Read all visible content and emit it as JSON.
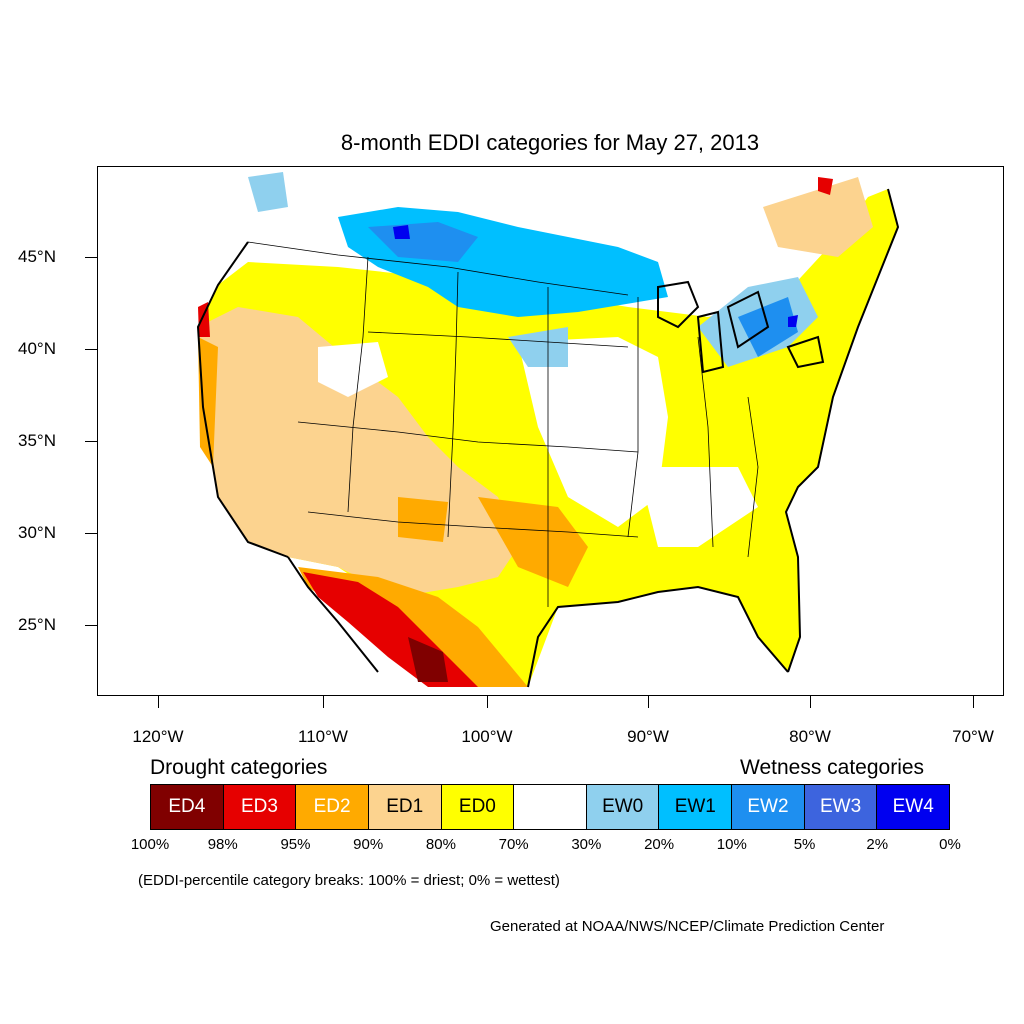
{
  "title": "8-month EDDI categories for May 27, 2013",
  "y_axis": {
    "ticks": [
      "45°N",
      "40°N",
      "35°N",
      "30°N",
      "25°N"
    ]
  },
  "x_axis": {
    "ticks": [
      "120°W",
      "110°W",
      "100°W",
      "90°W",
      "80°W",
      "70°W"
    ]
  },
  "legend": {
    "drought_header": "Drought categories",
    "wetness_header": "Wetness categories",
    "categories": [
      {
        "label": "ED4",
        "color": "#800000",
        "text_color": "#ffffff"
      },
      {
        "label": "ED3",
        "color": "#e60000",
        "text_color": "#ffffff"
      },
      {
        "label": "ED2",
        "color": "#ffaa00",
        "text_color": "#ffffff"
      },
      {
        "label": "ED1",
        "color": "#fcd38f",
        "text_color": "#000000"
      },
      {
        "label": "ED0",
        "color": "#ffff00",
        "text_color": "#000000"
      },
      {
        "label": "",
        "color": "#ffffff",
        "text_color": "#000000"
      },
      {
        "label": "EW0",
        "color": "#8fd0ee",
        "text_color": "#000000"
      },
      {
        "label": "EW1",
        "color": "#00bfff",
        "text_color": "#000000"
      },
      {
        "label": "EW2",
        "color": "#1e8ff0",
        "text_color": "#ffffff"
      },
      {
        "label": "EW3",
        "color": "#3d64de",
        "text_color": "#ffffff"
      },
      {
        "label": "EW4",
        "color": "#0000f0",
        "text_color": "#ffffff"
      }
    ],
    "percent_breaks": [
      "100%",
      "98%",
      "95%",
      "90%",
      "80%",
      "70%",
      "30%",
      "20%",
      "10%",
      "5%",
      "2%",
      "0%"
    ]
  },
  "note": "(EDDI-percentile category breaks: 100% = driest; 0% = wettest)",
  "credit": "Generated at NOAA/NWS/NCEP/Climate Prediction Center"
}
